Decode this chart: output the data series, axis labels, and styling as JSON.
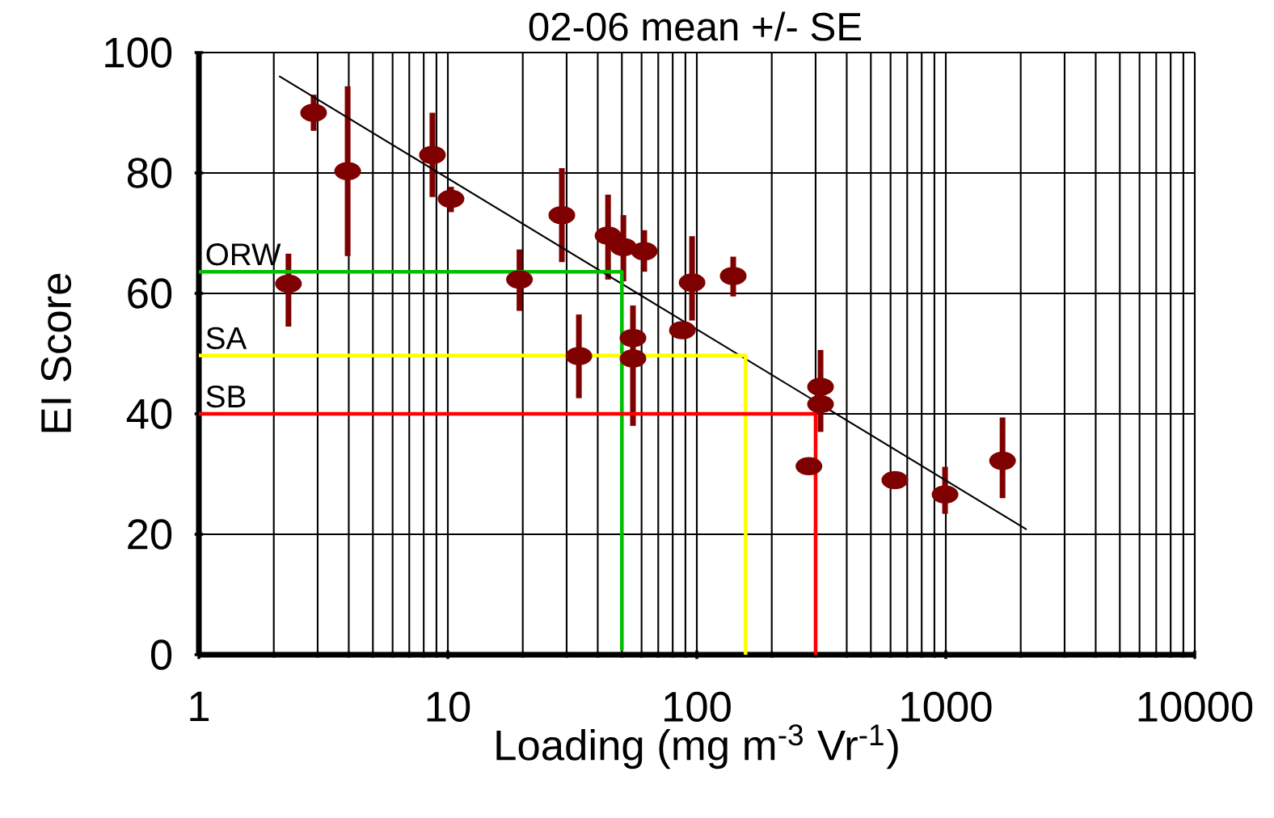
{
  "chart_data": {
    "type": "scatter",
    "title": "02-06 mean +/- SE",
    "xlabel": "Loading (mg m$^{-3}$ Vr$^{-1}$)",
    "ylabel": "EI Score",
    "log": "x",
    "xlim": [
      1,
      10000
    ],
    "xticks": [
      1,
      10,
      100,
      1000,
      10000
    ],
    "ylim": [
      0,
      100
    ],
    "yticks": [
      0,
      20,
      40,
      60,
      80,
      100
    ],
    "grid": true,
    "series": [
      {
        "color": "#7f0000",
        "marker": "circle",
        "x": [
          2.29,
          2.89,
          3.96,
          8.67,
          10.3,
          19.4,
          28.7,
          33.6,
          44,
          50.7,
          61.5,
          55.4,
          55.4,
          87.5,
          95.7,
          140,
          282,
          314,
          314,
          624,
          993,
          1690
        ],
        "values": [
          61.6,
          90,
          80.3,
          83,
          75.7,
          62.3,
          73,
          49.6,
          69.6,
          67.7,
          67,
          52.6,
          49.2,
          53.9,
          61.8,
          62.9,
          31.3,
          44.5,
          41.6,
          29,
          26.6,
          32.2
        ],
        "errors": [
          [
            54.5,
            66.6
          ],
          [
            87,
            93
          ],
          [
            66.2,
            94.4
          ],
          [
            76,
            90
          ],
          [
            73.5,
            77.7
          ],
          [
            57.1,
            67.3
          ],
          [
            65.2,
            80.8
          ],
          [
            42.6,
            56.5
          ],
          [
            62.3,
            76.4
          ],
          [
            62,
            73
          ],
          [
            63.6,
            70.5
          ],
          [
            38,
            58
          ],
          null,
          null,
          [
            55.5,
            69.5
          ],
          [
            59.5,
            66.1
          ],
          null,
          [
            37,
            50.6
          ],
          null,
          null,
          [
            23.4,
            31.2
          ],
          [
            26,
            39.4
          ]
        ]
      },
      {
        "type": "line",
        "color": "#000000",
        "x": [
          2.1,
          2113
        ],
        "values": [
          96.1,
          20.8
        ]
      },
      {
        "type": "line",
        "name": "ORW",
        "color": "#00c000",
        "x": [
          1,
          50,
          50
        ],
        "values": [
          63.6,
          63.6,
          0.7
        ]
      },
      {
        "type": "line",
        "name": "SA",
        "color": "#ffff00",
        "x": [
          1,
          157,
          157
        ],
        "values": [
          49.7,
          49.7,
          0
        ]
      },
      {
        "type": "line",
        "name": "SB",
        "color": "#ff0000",
        "x": [
          1,
          300,
          300
        ],
        "values": [
          40,
          40,
          0
        ]
      }
    ]
  }
}
